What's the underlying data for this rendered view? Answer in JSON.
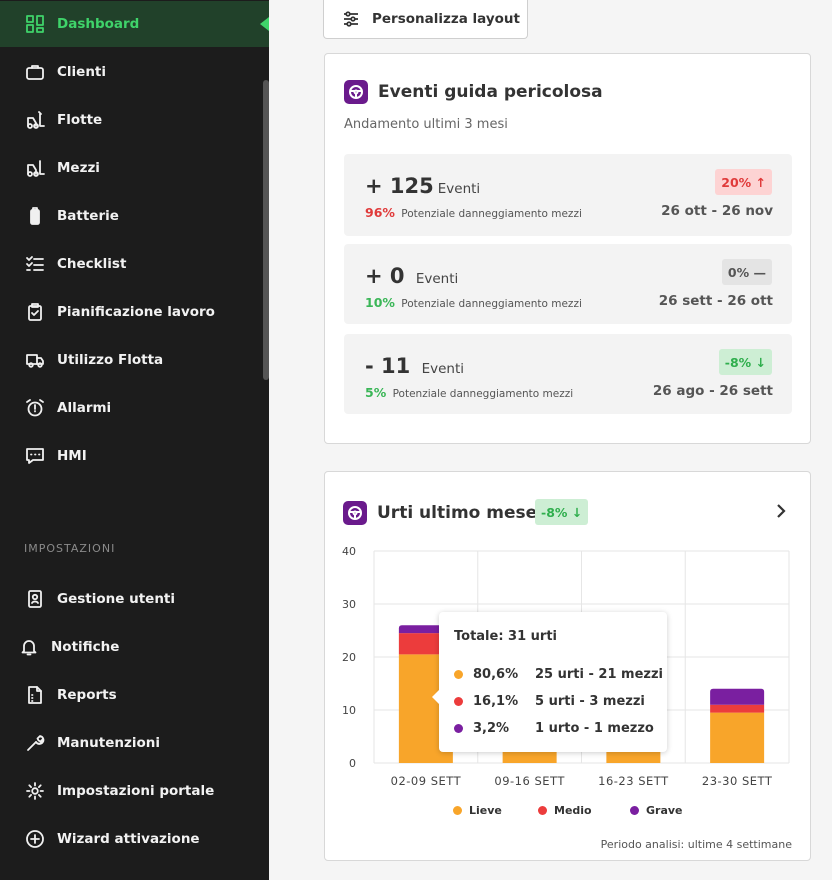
{
  "sidebar": {
    "items": [
      {
        "label": "Dashboard",
        "icon": "grid-icon",
        "active": true
      },
      {
        "label": "Clienti",
        "icon": "briefcase-icon"
      },
      {
        "label": "Flotte",
        "icon": "forklift-fleet-icon"
      },
      {
        "label": "Mezzi",
        "icon": "forklift-icon"
      },
      {
        "label": "Batterie",
        "icon": "battery-icon"
      },
      {
        "label": "Checklist",
        "icon": "checklist-icon"
      },
      {
        "label": "Pianificazione lavoro",
        "icon": "clipboard-icon"
      },
      {
        "label": "Utilizzo Flotta",
        "icon": "truck-icon"
      },
      {
        "label": "Allarmi",
        "icon": "alarm-icon"
      },
      {
        "label": "HMI",
        "icon": "message-icon"
      }
    ],
    "section_title": "IMPOSTAZIONI",
    "settings_items": [
      {
        "label": "Gestione utenti",
        "icon": "user-badge-icon"
      },
      {
        "label": "Notifiche",
        "icon": "bell-icon"
      },
      {
        "label": "Reports",
        "icon": "report-icon"
      },
      {
        "label": "Manutenzioni",
        "icon": "wrench-icon"
      },
      {
        "label": "Impostazioni portale",
        "icon": "gear-icon"
      },
      {
        "label": "Wizard attivazione",
        "icon": "plus-circle-icon"
      }
    ]
  },
  "toolbar": {
    "layout_button": "Personalizza layout"
  },
  "events_card": {
    "title": "Eventi guida pericolosa",
    "subtitle": "Andamento ultimi 3 mesi",
    "rows": [
      {
        "value": "+ 125",
        "unit": "Eventi",
        "pct": "96%",
        "desc": "Potenziale danneggiamento mezzi",
        "chip": "20% ↑",
        "date": "26 ott - 26 nov"
      },
      {
        "value": "+ 0",
        "unit": "Eventi",
        "pct": "10%",
        "desc": "Potenziale danneggiamento mezzi",
        "chip": "0% —",
        "date": "26 sett - 26 ott"
      },
      {
        "value": "- 11",
        "unit": "Eventi",
        "pct": "5%",
        "desc": "Potenziale danneggiamento mezzi",
        "chip": "-8% ↓",
        "date": "26 ago - 26 sett"
      }
    ]
  },
  "urti_card": {
    "title": "Urti ultimo mese",
    "chip": "-8% ↓",
    "period": "Periodo analisi: ultime 4 settimane",
    "tooltip": {
      "title": "Totale: 31 urti",
      "rows": [
        {
          "pct": "80,6%",
          "text": "25 urti - 21 mezzi"
        },
        {
          "pct": "16,1%",
          "text": "5 urti - 3 mezzi"
        },
        {
          "pct": "3,2%",
          "text": "1 urto - 1 mezzo"
        }
      ]
    }
  },
  "colors": {
    "lieve": "#f8a52a",
    "medio": "#ec3c3c",
    "grave": "#7a1fa0",
    "accent": "#3fd36a"
  },
  "chart_data": {
    "type": "bar",
    "stacked": true,
    "categories": [
      "02-09 SETT",
      "09-16 SETT",
      "16-23 SETT",
      "23-30 SETT"
    ],
    "series": [
      {
        "name": "Lieve",
        "values": [
          20.5,
          20,
          20,
          9.5
        ]
      },
      {
        "name": "Medio",
        "values": [
          4,
          0,
          0,
          1.5
        ]
      },
      {
        "name": "Grave",
        "values": [
          1.5,
          0,
          0,
          3
        ]
      }
    ],
    "ylim": [
      0,
      40
    ],
    "yticks": [
      0,
      10,
      20,
      30,
      40
    ],
    "grid": true,
    "legend": "bottom"
  }
}
